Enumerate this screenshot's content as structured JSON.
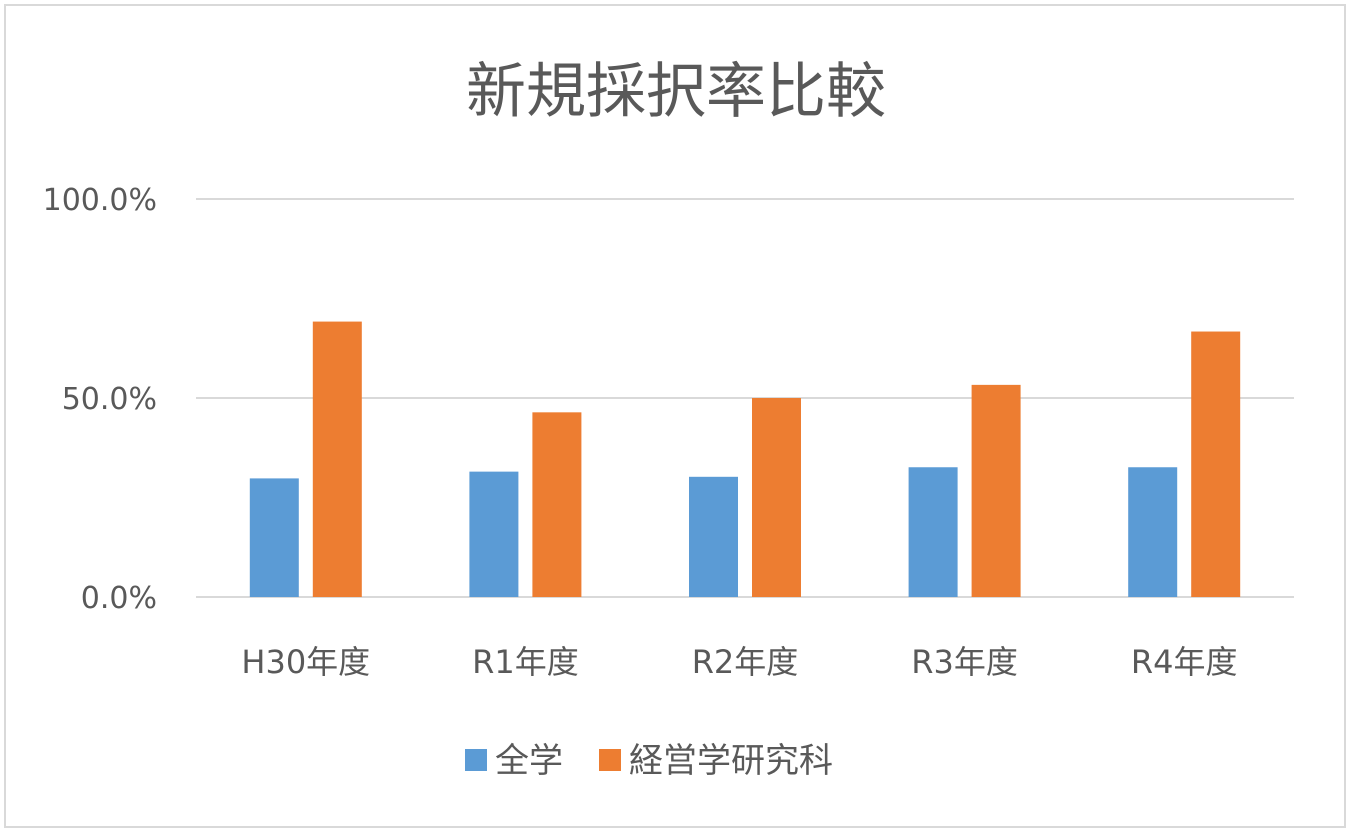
{
  "chart_data": {
    "type": "bar",
    "title": "新規採択率比較",
    "xlabel": "",
    "ylabel": "",
    "categories": [
      "H30年度",
      "R1年度",
      "R2年度",
      "R3年度",
      "R4年度"
    ],
    "series": [
      {
        "name": "全学",
        "color": "#5b9bd5",
        "values": [
          29.8,
          31.5,
          30.2,
          32.6,
          32.6
        ]
      },
      {
        "name": "経営学研究科",
        "color": "#ed7d31",
        "values": [
          69.2,
          46.4,
          50.0,
          53.3,
          66.7
        ]
      }
    ],
    "ylim": [
      0,
      100
    ],
    "yticks": [
      0,
      50,
      100
    ],
    "ytick_labels": [
      "0.0%",
      "50.0%",
      "100.0%"
    ],
    "grid": true,
    "grid_color": "#d9d9d9",
    "legend_position": "bottom"
  }
}
